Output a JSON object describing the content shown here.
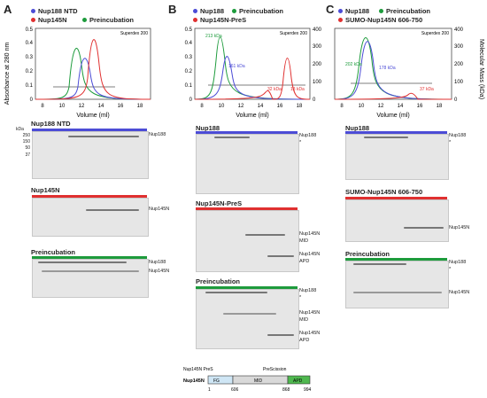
{
  "figure": {
    "panels": [
      {
        "letter": "A",
        "legend": [
          {
            "label": "Nup188 NTD",
            "color": "#4c4cd6"
          },
          {
            "label": "Nup145N",
            "color": "#e03030"
          },
          {
            "label": "Preincubation",
            "color": "#1d9b3c"
          }
        ],
        "column": "Superdex 200",
        "gels": [
          {
            "title": "Nup188 NTD",
            "bar_color": "#4c4cd6",
            "labels": [
              "Nup188"
            ]
          },
          {
            "title": "Nup145N",
            "bar_color": "#e03030",
            "labels": [
              "Nup145N"
            ]
          },
          {
            "title": "Preincubation",
            "bar_color": "#1d9b3c",
            "labels": [
              "Nup188",
              "Nup145N"
            ]
          }
        ]
      },
      {
        "letter": "B",
        "legend": [
          {
            "label": "Nup188",
            "color": "#4c4cd6"
          },
          {
            "label": "Preincubation",
            "color": "#1d9b3c"
          },
          {
            "label": "Nup145N-PreS",
            "color": "#e03030"
          }
        ],
        "column": "Superdex 200",
        "annotations": [
          "213 kDa",
          "161 kDa",
          "32 kDa",
          "13 kDa"
        ],
        "gels": [
          {
            "title": "Nup188",
            "bar_color": "#4c4cd6",
            "labels": [
              "Nup188",
              "*"
            ]
          },
          {
            "title": "Nup145N-PreS",
            "bar_color": "#e03030",
            "labels": [
              "Nup145N",
              "MID",
              "Nup145N",
              "APD"
            ]
          },
          {
            "title": "Preincubation",
            "bar_color": "#1d9b3c",
            "labels": [
              "Nup188",
              "*",
              "Nup145N",
              "MID",
              "Nup145N",
              "APD"
            ]
          }
        ]
      },
      {
        "letter": "C",
        "legend": [
          {
            "label": "Nup188",
            "color": "#4c4cd6"
          },
          {
            "label": "Preincubation",
            "color": "#1d9b3c"
          },
          {
            "label": "SUMO-Nup145N 606-750",
            "color": "#e03030"
          }
        ],
        "column": "Superdex 200",
        "annotations": [
          "202 kDa",
          "178 kDa",
          "37 kDa"
        ],
        "gels": [
          {
            "title": "Nup188",
            "bar_color": "#4c4cd6",
            "labels": [
              "Nup188",
              "*"
            ]
          },
          {
            "title": "SUMO-Nup145N 606-750",
            "bar_color": "#e03030",
            "labels": [
              "Nup145N"
            ]
          },
          {
            "title": "Preincubation",
            "bar_color": "#1d9b3c",
            "labels": [
              "Nup188",
              "*",
              "Nup145N"
            ]
          }
        ]
      }
    ],
    "axes": {
      "xlabel": "Volume (ml)",
      "ylabel_left": "Absorbance at 280 nm",
      "ylabel_right": "Molecular Mass (kDa)",
      "xticks": [
        "8",
        "10",
        "12",
        "14",
        "16",
        "18"
      ],
      "yticks_left": [
        "0",
        "0.1",
        "0.2",
        "0.3",
        "0.4",
        "0.5"
      ],
      "yticks_right": [
        "0",
        "100",
        "200",
        "300",
        "400"
      ]
    },
    "kda_label": "kDa",
    "mw_markers": [
      "250",
      "150",
      "100",
      "75",
      "50",
      "37",
      "25",
      "20",
      "15"
    ],
    "schematic": {
      "name": "Nup145N PreS",
      "construct": "Nup145N",
      "cleavage": "PreScission",
      "domains": [
        "FG",
        "MID",
        "APD"
      ],
      "positions": [
        "1",
        "606",
        "868",
        "994"
      ]
    }
  },
  "chart_data": [
    {
      "type": "line",
      "panel": "A",
      "x_range": [
        8,
        18
      ],
      "y_range": [
        0,
        0.5
      ],
      "series": [
        {
          "name": "Nup188 NTD",
          "peak_x": 12.2,
          "peak_y": 0.4
        },
        {
          "name": "Nup145N",
          "peak_x": 13.0,
          "peak_y": 0.5
        },
        {
          "name": "Preincubation",
          "peak_x": 11.3,
          "peak_y": 0.47
        }
      ]
    },
    {
      "type": "line",
      "panel": "B",
      "x_range": [
        8,
        18
      ],
      "y_range": [
        0,
        0.5
      ],
      "series": [
        {
          "name": "Nup188",
          "peak_x": 11.1,
          "peak_y": 0.3
        },
        {
          "name": "Preincubation",
          "peak_x": 10.4,
          "peak_y": 0.45
        },
        {
          "name": "Nup145N-PreS",
          "peak_x": 17.0,
          "peak_y": 0.27
        }
      ]
    },
    {
      "type": "line",
      "panel": "C",
      "x_range": [
        8,
        18
      ],
      "y_range": [
        0,
        0.5
      ],
      "series": [
        {
          "name": "Nup188",
          "peak_x": 11.3,
          "peak_y": 0.42
        },
        {
          "name": "Preincubation",
          "peak_x": 11.0,
          "peak_y": 0.44
        },
        {
          "name": "SUMO-Nup145N 606-750",
          "peak_x": 15.0,
          "peak_y": 0.03
        }
      ]
    }
  ]
}
